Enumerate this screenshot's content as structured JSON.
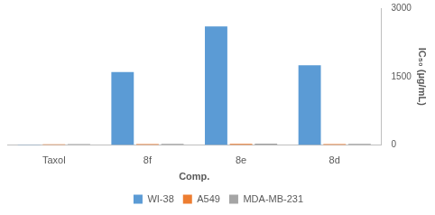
{
  "chart_data": {
    "type": "bar",
    "categories": [
      "Taxol",
      "8f",
      "8e",
      "8d"
    ],
    "series": [
      {
        "name": "WI-38",
        "color": "#5b9bd5",
        "values": [
          10,
          1600,
          2600,
          1750
        ]
      },
      {
        "name": "A549",
        "color": "#ed7d31",
        "values": [
          15,
          20,
          25,
          20
        ]
      },
      {
        "name": "MDA-MB-231",
        "color": "#a5a5a5",
        "values": [
          20,
          25,
          30,
          25
        ]
      }
    ],
    "x_label": "Comp.",
    "y_label": "IC₅₀ (µg/mL)",
    "ylim": [
      0,
      3000
    ],
    "yticks": [
      0,
      1500,
      3000
    ],
    "grid": false,
    "legend": "bottom"
  }
}
